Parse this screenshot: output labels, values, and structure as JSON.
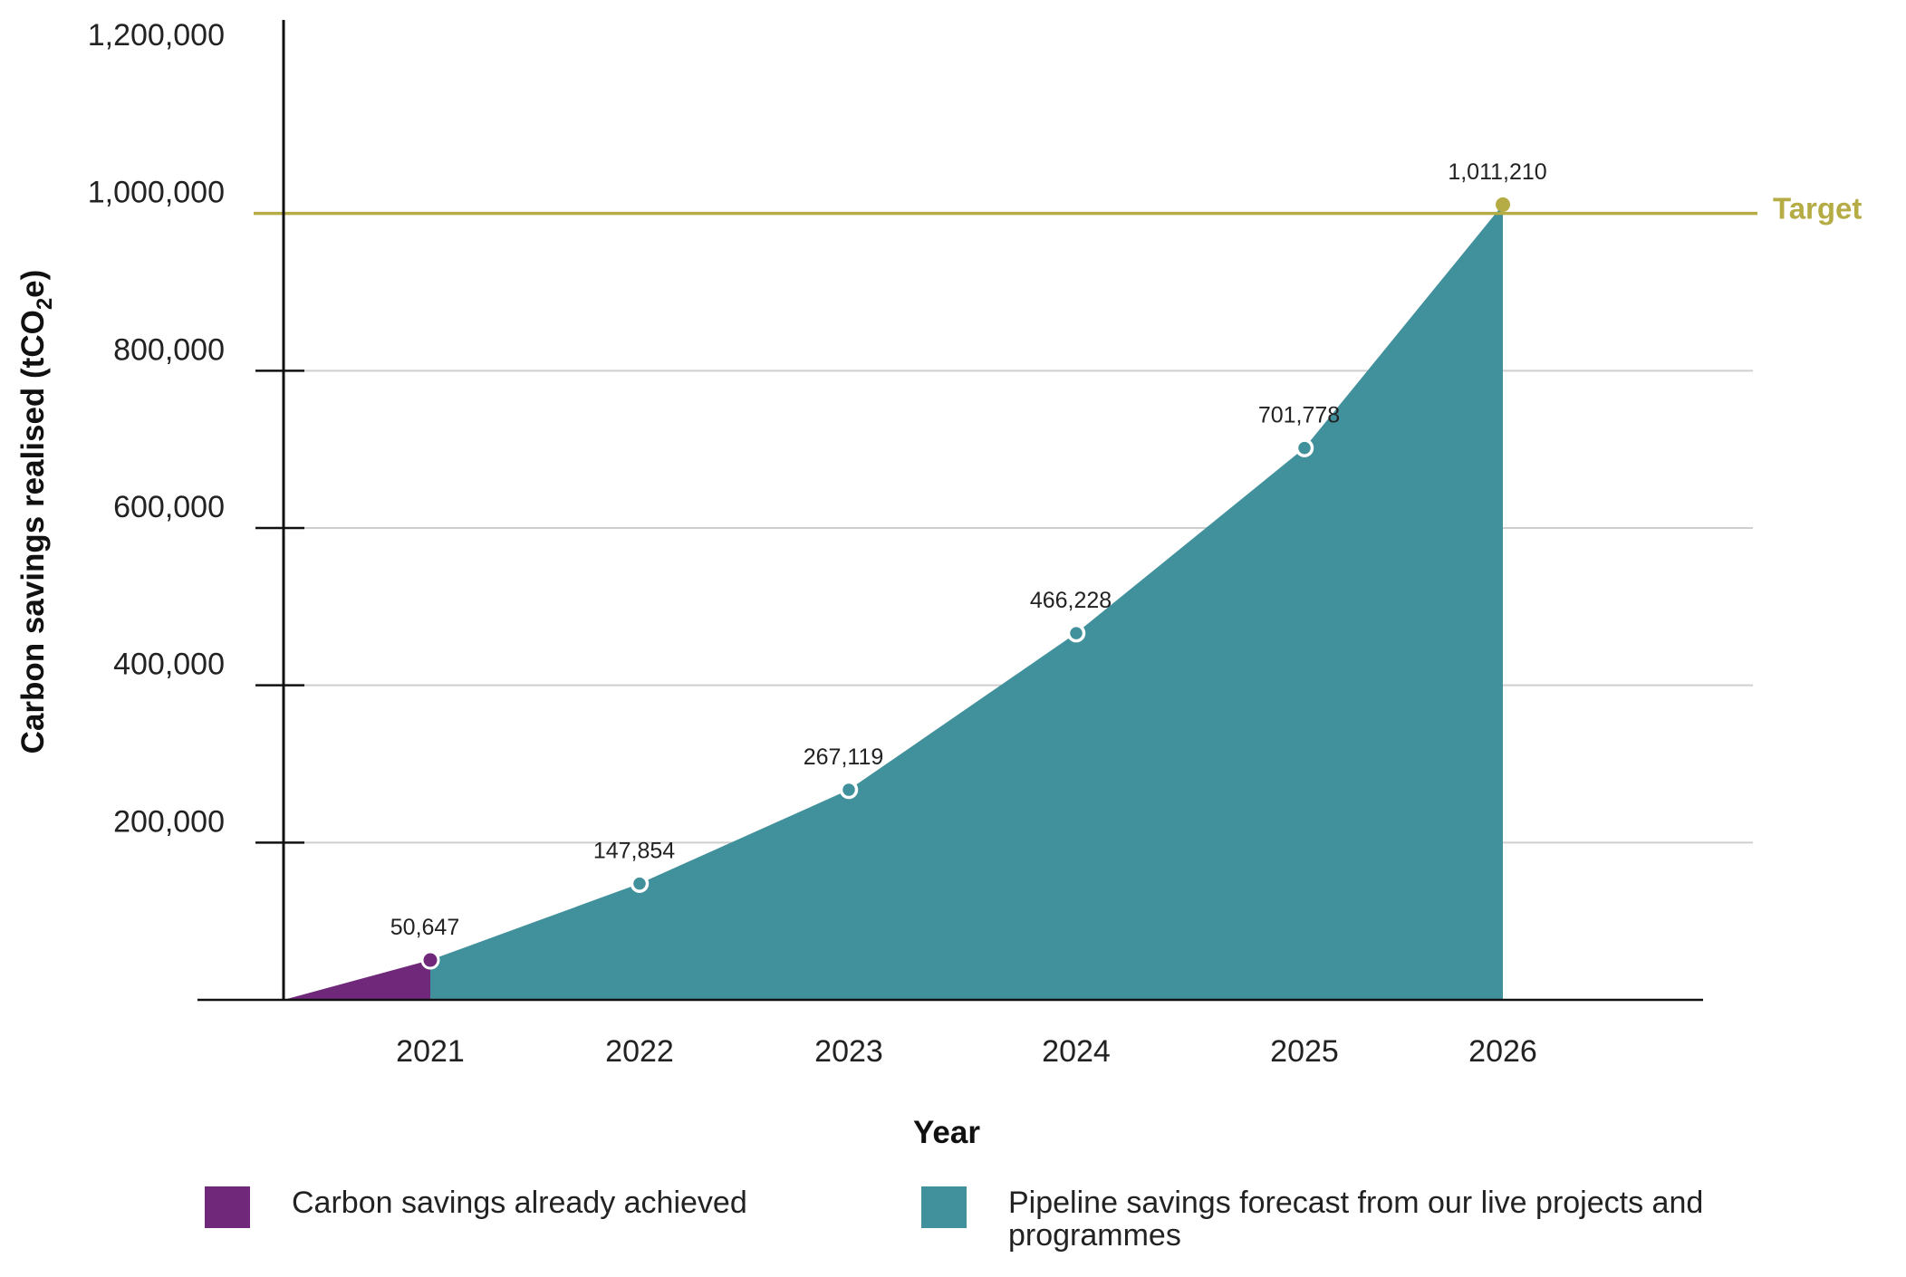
{
  "chart_data": {
    "type": "area",
    "xlabel": "Year",
    "ylabel_main": "Carbon savings realised (tCO",
    "ylabel_sub": "2",
    "ylabel_end": "e)",
    "ylim": [
      0,
      1200000
    ],
    "y_ticks": [
      {
        "value": 200000,
        "label": "200,000"
      },
      {
        "value": 400000,
        "label": "400,000"
      },
      {
        "value": 600000,
        "label": "600,000"
      },
      {
        "value": 800000,
        "label": "800,000"
      },
      {
        "value": 1000000,
        "label": "1,000,000"
      },
      {
        "value": 1200000,
        "label": "1,200,000"
      }
    ],
    "categories": [
      "2021",
      "2022",
      "2023",
      "2024",
      "2025",
      "2026"
    ],
    "origin_value": 0,
    "series": [
      {
        "name": "Carbon savings already achieved",
        "color": "#70287a",
        "points": [
          {
            "x": "2021",
            "y": 50647,
            "label": "50,647"
          }
        ]
      },
      {
        "name": "Pipeline savings forecast from our live projects and programmes",
        "color": "#40919c",
        "points": [
          {
            "x": "2022",
            "y": 147854,
            "label": "147,854"
          },
          {
            "x": "2023",
            "y": 267119,
            "label": "267,119"
          },
          {
            "x": "2024",
            "y": 466228,
            "label": "466,228"
          },
          {
            "x": "2025",
            "y": 701778,
            "label": "701,778"
          },
          {
            "x": "2026",
            "y": 1011210,
            "label": "1,011,210"
          }
        ]
      }
    ],
    "target": {
      "value": 1000000,
      "label": "Target",
      "color": "#b5ac45"
    },
    "grid": true,
    "legend_position": "bottom",
    "legend": [
      {
        "label": "Carbon savings already achieved",
        "color": "#70287a"
      },
      {
        "label": "Pipeline savings forecast from our live projects and programmes",
        "color": "#40919c"
      }
    ]
  }
}
